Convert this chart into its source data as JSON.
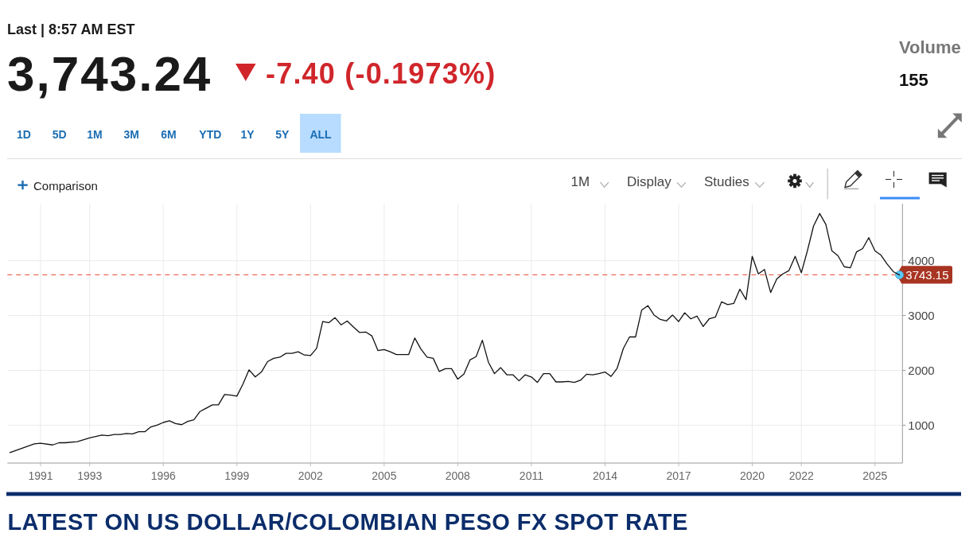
{
  "chart_data": {
    "type": "line",
    "title": "LATEST ON US DOLLAR/COLOMBIAN PESO FX SPOT RATE",
    "subtitle": "Last | 8:57 AM EST",
    "annotations": [
      "3,743.24",
      "-7.40 (-0.1973%)",
      "Volume",
      "155",
      "1D",
      "5D",
      "1M",
      "3M",
      "6M",
      "YTD",
      "1Y",
      "5Y",
      "ALL",
      "Comparison",
      "1M",
      "Display",
      "Studies"
    ],
    "xlim": [
      "1989-08-25",
      "2026-02-14"
    ],
    "xticks": [
      "1991",
      "1993",
      "1996",
      "1999",
      "2002",
      "2005",
      "2008",
      "2011",
      "2014",
      "2017",
      "2020",
      "2022",
      "2025"
    ],
    "ylim": [
      310,
      5040
    ],
    "yticks": [
      1000,
      2000,
      3000,
      4000
    ],
    "grid": true,
    "ref_lines": [
      {
        "axis": "y",
        "value": 3743.15,
        "label": "3743.15",
        "color": "#e8472f",
        "line_style": "dashed"
      }
    ],
    "x": [
      "1989-10",
      "1990-10",
      "1991-01",
      "1991-07",
      "1991-10",
      "1992-01",
      "1992-07",
      "1993-01",
      "1993-07",
      "1993-10",
      "1994-01",
      "1994-04",
      "1994-07",
      "1994-10",
      "1995-01",
      "1995-04",
      "1995-07",
      "1995-10",
      "1996-01",
      "1996-04",
      "1996-07",
      "1996-10",
      "1997-01",
      "1997-04",
      "1997-07",
      "1997-10",
      "1998-01",
      "1998-04",
      "1998-07",
      "1998-10",
      "1999-01",
      "1999-04",
      "1999-07",
      "1999-10",
      "2000-01",
      "2000-04",
      "2000-07",
      "2000-10",
      "2001-01",
      "2001-04",
      "2001-07",
      "2001-10",
      "2002-01",
      "2002-04",
      "2002-07",
      "2002-10",
      "2003-01",
      "2003-04",
      "2003-07",
      "2003-10",
      "2004-01",
      "2004-04",
      "2004-07",
      "2004-10",
      "2005-01",
      "2005-04",
      "2005-07",
      "2006-01",
      "2006-04",
      "2006-07",
      "2006-10",
      "2007-01",
      "2007-04",
      "2007-07",
      "2007-10",
      "2008-01",
      "2008-04",
      "2008-07",
      "2008-10",
      "2009-01",
      "2009-04",
      "2009-07",
      "2009-10",
      "2010-01",
      "2010-04",
      "2010-07",
      "2010-10",
      "2011-01",
      "2011-04",
      "2011-07",
      "2011-10",
      "2012-01",
      "2012-04",
      "2012-07",
      "2012-10",
      "2013-01",
      "2013-04",
      "2013-07",
      "2013-10",
      "2014-01",
      "2014-04",
      "2014-07",
      "2014-10",
      "2015-01",
      "2015-04",
      "2015-07",
      "2015-10",
      "2016-01",
      "2016-04",
      "2016-07",
      "2016-10",
      "2017-01",
      "2017-04",
      "2017-07",
      "2017-10",
      "2018-01",
      "2018-04",
      "2018-07",
      "2018-10",
      "2019-01",
      "2019-04",
      "2019-07",
      "2019-10",
      "2020-01",
      "2020-04",
      "2020-07",
      "2020-10",
      "2021-01",
      "2021-04",
      "2021-07",
      "2021-10",
      "2022-01",
      "2022-04",
      "2022-07",
      "2022-10",
      "2023-01",
      "2023-04",
      "2023-07",
      "2023-10",
      "2024-01",
      "2024-04",
      "2024-07",
      "2024-10",
      "2025-01",
      "2025-04",
      "2025-07",
      "2025-10",
      "2026-01"
    ],
    "series": [
      {
        "color": "#111111",
        "values": [
          500,
          660,
          670,
          640,
          680,
          680,
          700,
          770,
          820,
          810,
          830,
          830,
          850,
          840,
          880,
          880,
          970,
          1000,
          1050,
          1080,
          1030,
          1010,
          1070,
          1100,
          1250,
          1310,
          1370,
          1370,
          1560,
          1550,
          1530,
          1750,
          2010,
          1880,
          1970,
          2160,
          2220,
          2240,
          2310,
          2310,
          2340,
          2280,
          2270,
          2400,
          2890,
          2870,
          2960,
          2830,
          2900,
          2790,
          2690,
          2700,
          2630,
          2360,
          2380,
          2340,
          2290,
          2290,
          2590,
          2390,
          2240,
          2220,
          1980,
          2030,
          2030,
          1840,
          1930,
          2190,
          2250,
          2550,
          2150,
          1940,
          2050,
          1920,
          1920,
          1810,
          1920,
          1880,
          1780,
          1940,
          1940,
          1790,
          1790,
          1800,
          1780,
          1820,
          1930,
          1920,
          1940,
          1970,
          1890,
          2040,
          2400,
          2610,
          2610,
          3100,
          3180,
          3010,
          2930,
          2900,
          3010,
          2890,
          3050,
          2940,
          2990,
          2800,
          2940,
          2970,
          3250,
          3200,
          3220,
          3480,
          3290,
          4080,
          3760,
          3840,
          3420,
          3670,
          3760,
          3820,
          4080,
          3780,
          4180,
          4630,
          4860,
          4660,
          4180,
          4090,
          3890,
          3870,
          4160,
          4220,
          4420,
          4180,
          4100,
          3940,
          3800,
          3740
        ]
      },
      {
        "type": "scatter",
        "color": "#5bc8f5",
        "marker": "circle",
        "x": [
          "2026-01"
        ],
        "values": [
          3740
        ]
      }
    ]
  }
}
